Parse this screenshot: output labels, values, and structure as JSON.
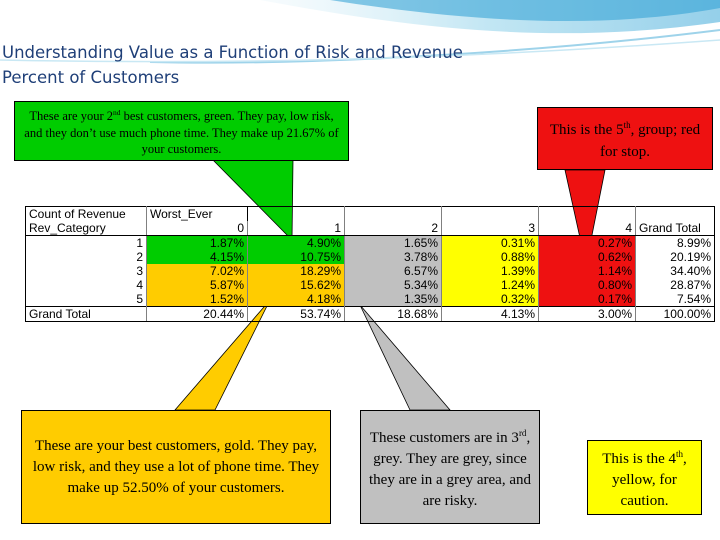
{
  "title": {
    "line1": "Understanding Value as a Function of Risk and Revenue",
    "line2": "Percent of Customers"
  },
  "callouts": {
    "green": {
      "pre": "These are your 2",
      "sup": "nd",
      "post": " best customers, green.  They pay, low risk, and they don’t use much phone time.  They make up 21.67% of your customers.",
      "color": "#00cc00"
    },
    "red": {
      "pre": "This is the 5",
      "sup": "th",
      "post": ", group; red for stop.",
      "color": "#ee1111"
    },
    "gold": {
      "text": "These are your best customers, gold.  They pay, low risk, and they use a lot of phone time.  They make up 52.50% of your customers.",
      "color": "#ffcc00"
    },
    "grey": {
      "pre": "These customers are in 3",
      "sup": "rd",
      "post": ", grey.  They are grey, since they are in a grey area, and are risky.",
      "color": "#c0c0c0"
    },
    "yellow": {
      "pre": "This is the 4",
      "sup": "th",
      "post": ", yellow, for caution.",
      "color": "#ffff00"
    }
  },
  "table": {
    "corner_label": "Count of Revenue",
    "column_field": "Worst_Ever",
    "row_field": "Rev_Category",
    "column_headers": [
      "0",
      "1",
      "2",
      "3",
      "4"
    ],
    "grand_total_label": "Grand Total",
    "rows": [
      {
        "label": "1",
        "values": [
          "1.87%",
          "4.90%",
          "1.65%",
          "0.31%",
          "0.27%"
        ],
        "total": "8.99%"
      },
      {
        "label": "2",
        "values": [
          "4.15%",
          "10.75%",
          "3.78%",
          "0.88%",
          "0.62%"
        ],
        "total": "20.19%"
      },
      {
        "label": "3",
        "values": [
          "7.02%",
          "18.29%",
          "6.57%",
          "1.39%",
          "1.14%"
        ],
        "total": "34.40%"
      },
      {
        "label": "4",
        "values": [
          "5.87%",
          "15.62%",
          "5.34%",
          "1.24%",
          "0.80%"
        ],
        "total": "28.87%"
      },
      {
        "label": "5",
        "values": [
          "1.52%",
          "4.18%",
          "1.35%",
          "0.32%",
          "0.17%"
        ],
        "total": "7.54%"
      }
    ],
    "grand_total_row": {
      "values": [
        "20.44%",
        "53.74%",
        "18.68%",
        "4.13%",
        "3.00%"
      ],
      "total": "100.00%"
    }
  },
  "colors": {
    "green": "#00cc00",
    "gold": "#ffcc00",
    "grey": "#c0c0c0",
    "yellow": "#ffff00",
    "red": "#ee1111",
    "title": "#1f3f78"
  }
}
